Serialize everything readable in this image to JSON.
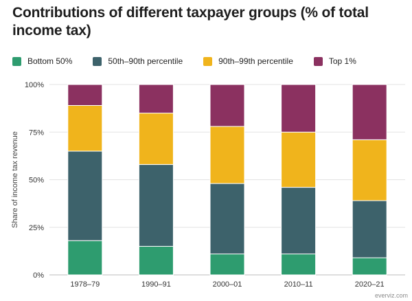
{
  "chart_data": {
    "type": "bar",
    "stacked": true,
    "title": "Contributions of different taxpayer groups (% of total income tax)",
    "xlabel": "",
    "ylabel": "Share of income tax revenue",
    "ylim": [
      0,
      100
    ],
    "y_ticks": [
      {
        "value": 0,
        "label": "0%"
      },
      {
        "value": 25,
        "label": "25%"
      },
      {
        "value": 50,
        "label": "50%"
      },
      {
        "value": 75,
        "label": "75%"
      },
      {
        "value": 100,
        "label": "100%"
      }
    ],
    "grid": true,
    "legend_position": "top-left",
    "categories": [
      "1978–79",
      "1990–91",
      "2000–01",
      "2010–11",
      "2020–21"
    ],
    "series": [
      {
        "name": "Bottom 50%",
        "color": "#2e9c6f",
        "values": [
          18,
          15,
          11,
          11,
          9
        ]
      },
      {
        "name": "50th–90th percentile",
        "color": "#3d626b",
        "values": [
          47,
          43,
          37,
          35,
          30
        ]
      },
      {
        "name": "90th–99th percentile",
        "color": "#f0b41c",
        "values": [
          24,
          27,
          30,
          29,
          32
        ]
      },
      {
        "name": "Top 1%",
        "color": "#8b3160",
        "values": [
          11,
          15,
          22,
          25,
          29
        ]
      }
    ]
  },
  "credit": "everviz.com"
}
